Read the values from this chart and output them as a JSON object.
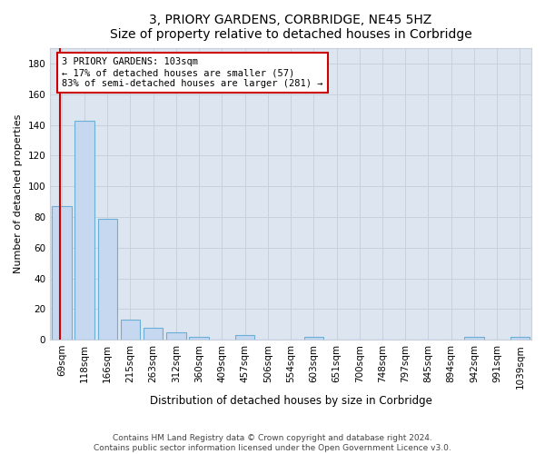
{
  "title": "3, PRIORY GARDENS, CORBRIDGE, NE45 5HZ",
  "subtitle": "Size of property relative to detached houses in Corbridge",
  "xlabel": "Distribution of detached houses by size in Corbridge",
  "ylabel": "Number of detached properties",
  "footnote1": "Contains HM Land Registry data © Crown copyright and database right 2024.",
  "footnote2": "Contains public sector information licensed under the Open Government Licence v3.0.",
  "bar_labels": [
    "69sqm",
    "118sqm",
    "166sqm",
    "215sqm",
    "263sqm",
    "312sqm",
    "360sqm",
    "409sqm",
    "457sqm",
    "506sqm",
    "554sqm",
    "603sqm",
    "651sqm",
    "700sqm",
    "748sqm",
    "797sqm",
    "845sqm",
    "894sqm",
    "942sqm",
    "991sqm",
    "1039sqm"
  ],
  "bar_values": [
    87,
    143,
    79,
    13,
    8,
    5,
    2,
    0,
    3,
    0,
    0,
    2,
    0,
    0,
    0,
    0,
    0,
    0,
    2,
    0,
    2
  ],
  "bar_color": "#c5d8ef",
  "bar_edgecolor": "#6baed6",
  "vline_pos": -0.07,
  "vline_color": "#cc0000",
  "annotation_text": "3 PRIORY GARDENS: 103sqm\n← 17% of detached houses are smaller (57)\n83% of semi-detached houses are larger (281) →",
  "annotation_box_edgecolor": "#cc0000",
  "ylim_max": 190,
  "yticks": [
    0,
    20,
    40,
    60,
    80,
    100,
    120,
    140,
    160,
    180
  ],
  "grid_color": "#c8d0dc",
  "bg_color": "#dde6f0",
  "fig_bg_color": "#ffffff",
  "title_fontsize": 10,
  "subtitle_fontsize": 9,
  "ylabel_fontsize": 8,
  "xlabel_fontsize": 8.5,
  "tick_fontsize": 7.5,
  "annotation_fontsize": 7.5,
  "footnote_fontsize": 6.5
}
